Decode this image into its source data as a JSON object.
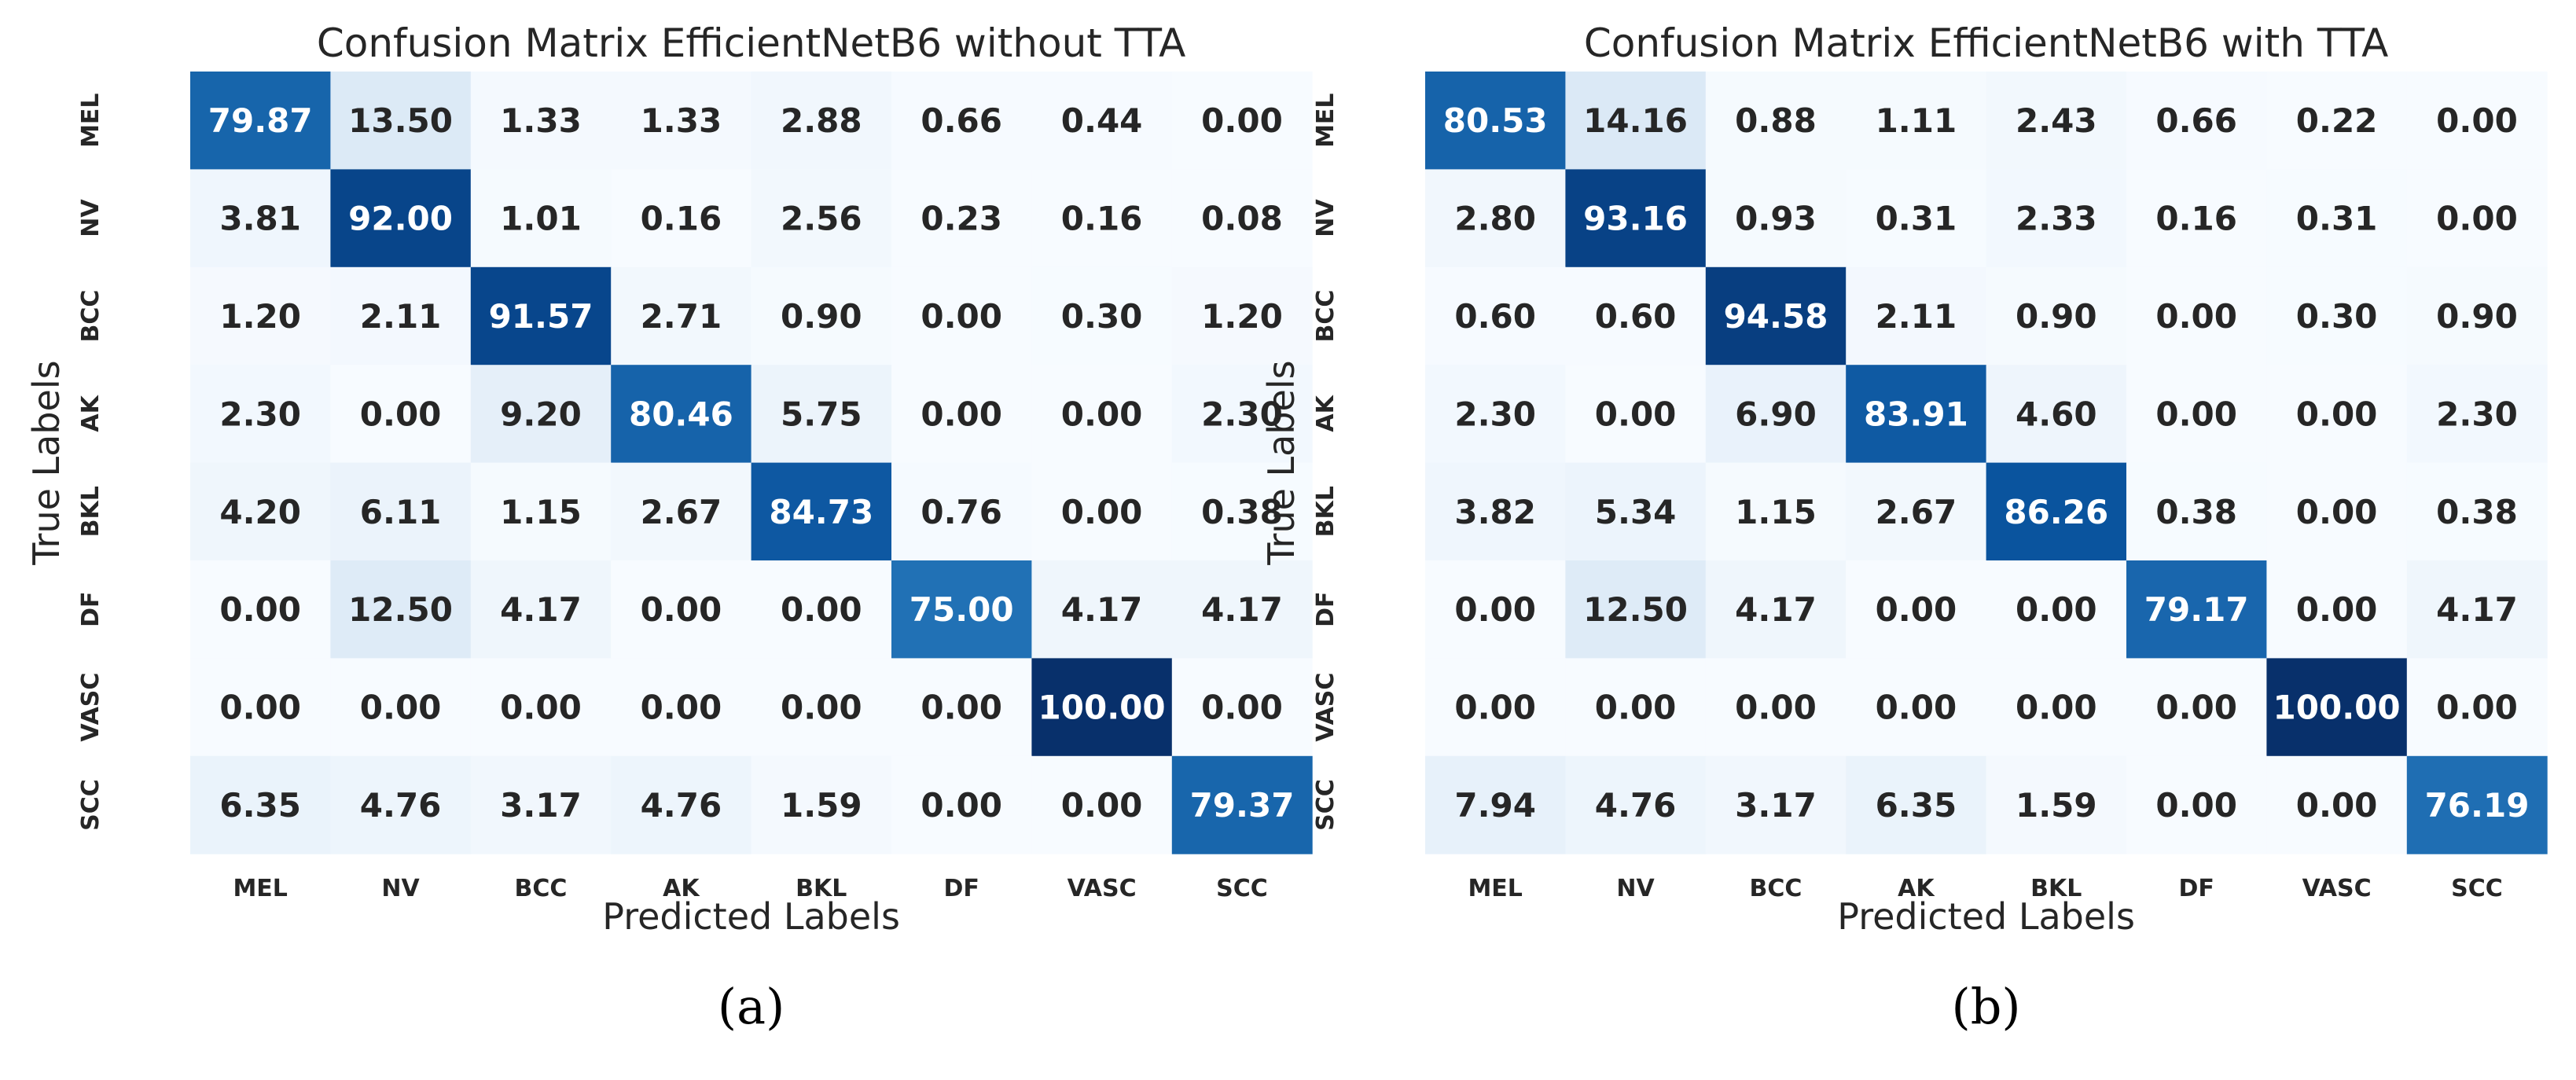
{
  "chart_data": [
    {
      "type": "heatmap",
      "title": "Confusion Matrix EfficientNetB6 without TTA",
      "xlabel": "Predicted Labels",
      "ylabel": "True Labels",
      "caption": "(a)",
      "x_categories": [
        "MEL",
        "NV",
        "BCC",
        "AK",
        "BKL",
        "DF",
        "VASC",
        "SCC"
      ],
      "y_categories": [
        "MEL",
        "NV",
        "BCC",
        "AK",
        "BKL",
        "DF",
        "VASC",
        "SCC"
      ],
      "values": [
        [
          79.87,
          13.5,
          1.33,
          1.33,
          2.88,
          0.66,
          0.44,
          0.0
        ],
        [
          3.81,
          92.0,
          1.01,
          0.16,
          2.56,
          0.23,
          0.16,
          0.08
        ],
        [
          1.2,
          2.11,
          91.57,
          2.71,
          0.9,
          0.0,
          0.3,
          1.2
        ],
        [
          2.3,
          0.0,
          9.2,
          80.46,
          5.75,
          0.0,
          0.0,
          2.3
        ],
        [
          4.2,
          6.11,
          1.15,
          2.67,
          84.73,
          0.76,
          0.0,
          0.38
        ],
        [
          0.0,
          12.5,
          4.17,
          0.0,
          0.0,
          75.0,
          4.17,
          4.17
        ],
        [
          0.0,
          0.0,
          0.0,
          0.0,
          0.0,
          0.0,
          100.0,
          0.0
        ],
        [
          6.35,
          4.76,
          3.17,
          4.76,
          1.59,
          0.0,
          0.0,
          79.37
        ]
      ],
      "value_range": [
        0,
        100
      ],
      "colormap": "Blues",
      "colorbar": false
    },
    {
      "type": "heatmap",
      "title": "Confusion Matrix EfficientNetB6 with TTA",
      "xlabel": "Predicted Labels",
      "ylabel": "True Labels",
      "caption": "(b)",
      "x_categories": [
        "MEL",
        "NV",
        "BCC",
        "AK",
        "BKL",
        "DF",
        "VASC",
        "SCC"
      ],
      "y_categories": [
        "MEL",
        "NV",
        "BCC",
        "AK",
        "BKL",
        "DF",
        "VASC",
        "SCC"
      ],
      "values": [
        [
          80.53,
          14.16,
          0.88,
          1.11,
          2.43,
          0.66,
          0.22,
          0.0
        ],
        [
          2.8,
          93.16,
          0.93,
          0.31,
          2.33,
          0.16,
          0.31,
          0.0
        ],
        [
          0.6,
          0.6,
          94.58,
          2.11,
          0.9,
          0.0,
          0.3,
          0.9
        ],
        [
          2.3,
          0.0,
          6.9,
          83.91,
          4.6,
          0.0,
          0.0,
          2.3
        ],
        [
          3.82,
          5.34,
          1.15,
          2.67,
          86.26,
          0.38,
          0.0,
          0.38
        ],
        [
          0.0,
          12.5,
          4.17,
          0.0,
          0.0,
          79.17,
          0.0,
          4.17
        ],
        [
          0.0,
          0.0,
          0.0,
          0.0,
          0.0,
          0.0,
          100.0,
          0.0
        ],
        [
          7.94,
          4.76,
          3.17,
          6.35,
          1.59,
          0.0,
          0.0,
          76.19
        ]
      ],
      "value_range": [
        0,
        100
      ],
      "colormap": "Blues",
      "colorbar": false
    }
  ]
}
